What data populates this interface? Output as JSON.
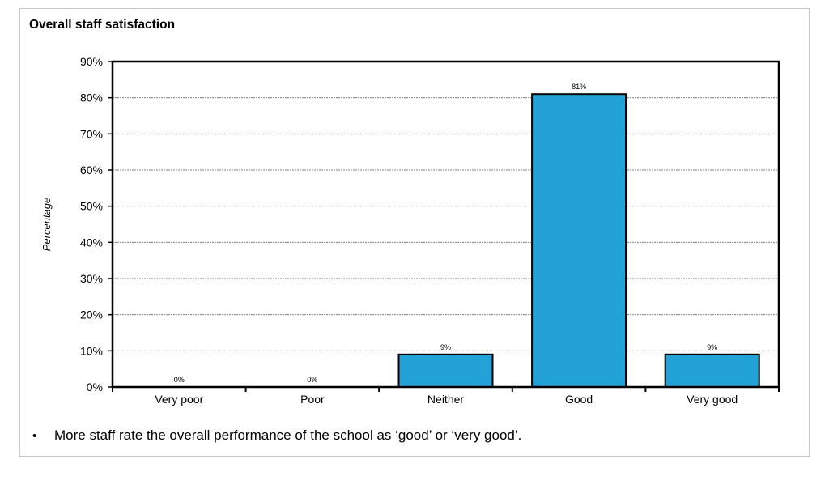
{
  "caption": {
    "bullet": "•",
    "text": "More staff rate the overall performance of the school as ‘good’ or ‘very good’."
  },
  "colors": {
    "bar": "#22a2d6",
    "bar_stroke": "#000000",
    "grid": "#808080"
  },
  "chart_data": {
    "type": "bar",
    "title": "Overall staff satisfaction",
    "xlabel": "",
    "ylabel": "Percentage",
    "categories": [
      "Very poor",
      "Poor",
      "Neither",
      "Good",
      "Very good"
    ],
    "values": [
      0,
      0,
      9,
      81,
      9
    ],
    "data_labels": [
      "0%",
      "0%",
      "9%",
      "81%",
      "9%"
    ],
    "ylim": [
      0,
      90
    ],
    "yticks": [
      0,
      10,
      20,
      30,
      40,
      50,
      60,
      70,
      80,
      90
    ],
    "ytick_labels": [
      "0%",
      "10%",
      "20%",
      "30%",
      "40%",
      "50%",
      "60%",
      "70%",
      "80%",
      "90%"
    ],
    "grid": true,
    "legend": "none"
  }
}
